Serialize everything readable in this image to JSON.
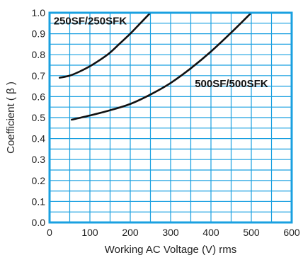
{
  "chart_data": {
    "type": "line",
    "xlabel": "Working AC Voltage (V) rms",
    "ylabel": "Coefficient ( β )",
    "xlim": [
      0,
      600
    ],
    "ylim": [
      0.0,
      1.0
    ],
    "x_ticks": [
      "0",
      "100",
      "200",
      "300",
      "400",
      "500",
      "600"
    ],
    "y_ticks": [
      "0.0",
      "0.1",
      "0.2",
      "0.3",
      "0.4",
      "0.5",
      "0.6",
      "0.7",
      "0.8",
      "0.9",
      "1.0"
    ],
    "grid": true,
    "colors": {
      "grid": "#1aa0e0",
      "frame": "#1aa0e0",
      "line": "#111111"
    },
    "series": [
      {
        "name": "250SF/250SFK",
        "x": [
          25,
          50,
          75,
          100,
          125,
          150,
          175,
          200,
          225,
          250
        ],
        "y": [
          0.69,
          0.7,
          0.72,
          0.745,
          0.775,
          0.81,
          0.855,
          0.9,
          0.95,
          1.0
        ]
      },
      {
        "name": "500SF/500SFK",
        "x": [
          55,
          100,
          150,
          200,
          250,
          300,
          350,
          400,
          450,
          500
        ],
        "y": [
          0.49,
          0.51,
          0.535,
          0.565,
          0.61,
          0.665,
          0.735,
          0.815,
          0.905,
          1.0
        ]
      }
    ]
  }
}
